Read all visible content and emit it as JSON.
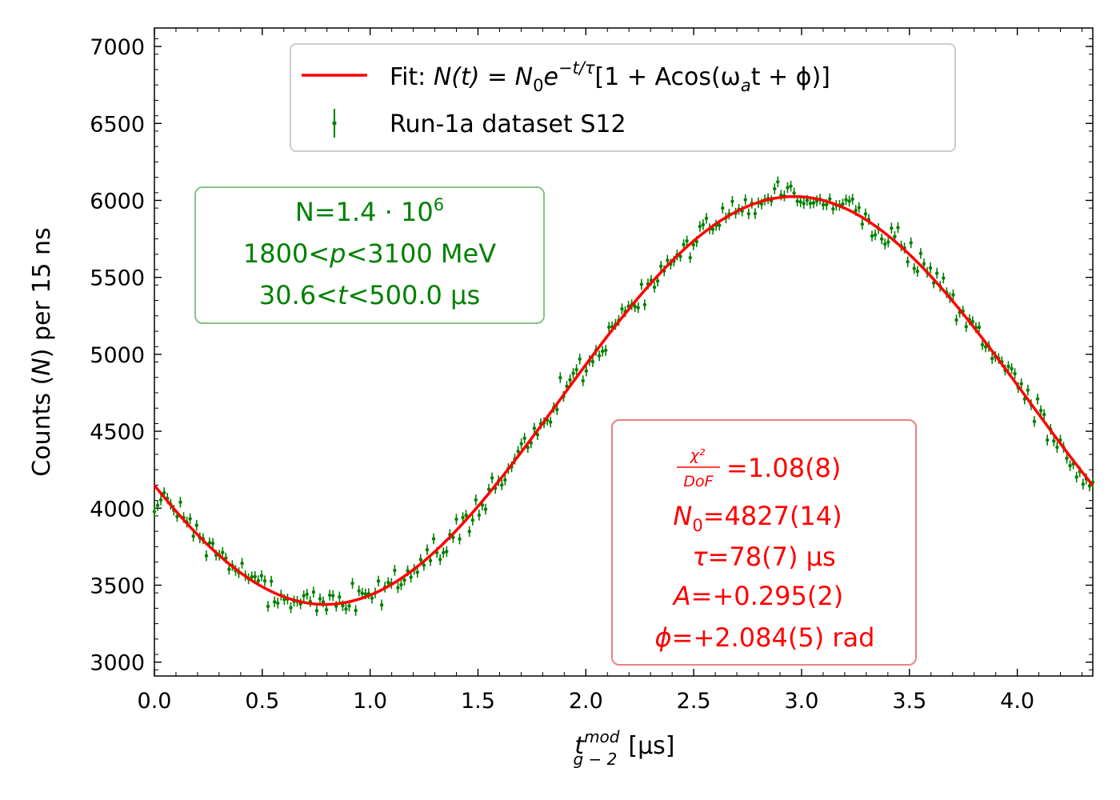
{
  "chart_data": {
    "type": "scatter",
    "title": "",
    "xlabel": "t_{g-2}^{mod} [μs]",
    "xlabel_parts": {
      "main": "t",
      "sub": "g − 2",
      "sup": "mod",
      "unit": "[μs]"
    },
    "ylabel": "Counts (N) per 15 ns",
    "ylabel_parts": {
      "pre": "Counts (",
      "var": "N",
      "post": ") per 15 ns"
    },
    "xlim": [
      0.0,
      4.35
    ],
    "ylim": [
      2910,
      7120
    ],
    "xticks": [
      "0.0",
      "0.5",
      "1.0",
      "1.5",
      "2.0",
      "2.5",
      "3.0",
      "3.5",
      "4.0"
    ],
    "xtick_values": [
      0.0,
      0.5,
      1.0,
      1.5,
      2.0,
      2.5,
      3.0,
      3.5,
      4.0
    ],
    "yticks": [
      "3000",
      "3500",
      "4000",
      "4500",
      "5000",
      "5500",
      "6000",
      "6500",
      "7000"
    ],
    "ytick_values": [
      3000,
      3500,
      4000,
      4500,
      5000,
      5500,
      6000,
      6500,
      7000
    ],
    "grid": false,
    "legend_position": "top-center",
    "legend": {
      "fit_label_prefix": "Fit: ",
      "fit_formula_lhs": "N(t) = N",
      "fit_formula_sub": "0",
      "fit_formula_e": "e",
      "fit_formula_exp": "−t/τ",
      "fit_formula_rhs": "[1 + Acos(ω",
      "fit_formula_sub2": "a",
      "fit_formula_end": "t + ϕ)]",
      "data_label": "Run-1a dataset S12"
    },
    "series": [
      {
        "name": "Fit",
        "kind": "line",
        "color": "#ff0000",
        "model": {
          "baseline": 4700,
          "amplitude": 1325,
          "omega": 1.4445,
          "phase": 2.0,
          "x_range": [
            0.0,
            4.35
          ]
        }
      },
      {
        "name": "Run-1a dataset S12",
        "kind": "errorbar",
        "color": "#008000",
        "n_points": 290,
        "noise_sd": 45,
        "yerr": 35,
        "seed": 12
      }
    ],
    "annotations": {
      "green_box": {
        "line1_prefix": "N=1.4 · 10",
        "line1_exp": "6",
        "line2_a": "1800<",
        "line2_var": "p",
        "line2_b": "<3100 MeV",
        "line3_a": "30.6<",
        "line3_var": "t",
        "line3_b": "<500.0 μs",
        "color": "#008000"
      },
      "red_box": {
        "chi2_num": "χ²",
        "chi2_den": "DoF",
        "chi2_val": "=1.08(8)",
        "n0_var": "N",
        "n0_sub": "0",
        "n0_val": "=4827(14)",
        "tau_var": "τ",
        "tau_val": "=78(7) μs",
        "a_var": "A",
        "a_val": "=+0.295(2)",
        "phi_var": "ϕ",
        "phi_val": "=+2.084(5) rad",
        "color": "#ff0000"
      }
    }
  }
}
